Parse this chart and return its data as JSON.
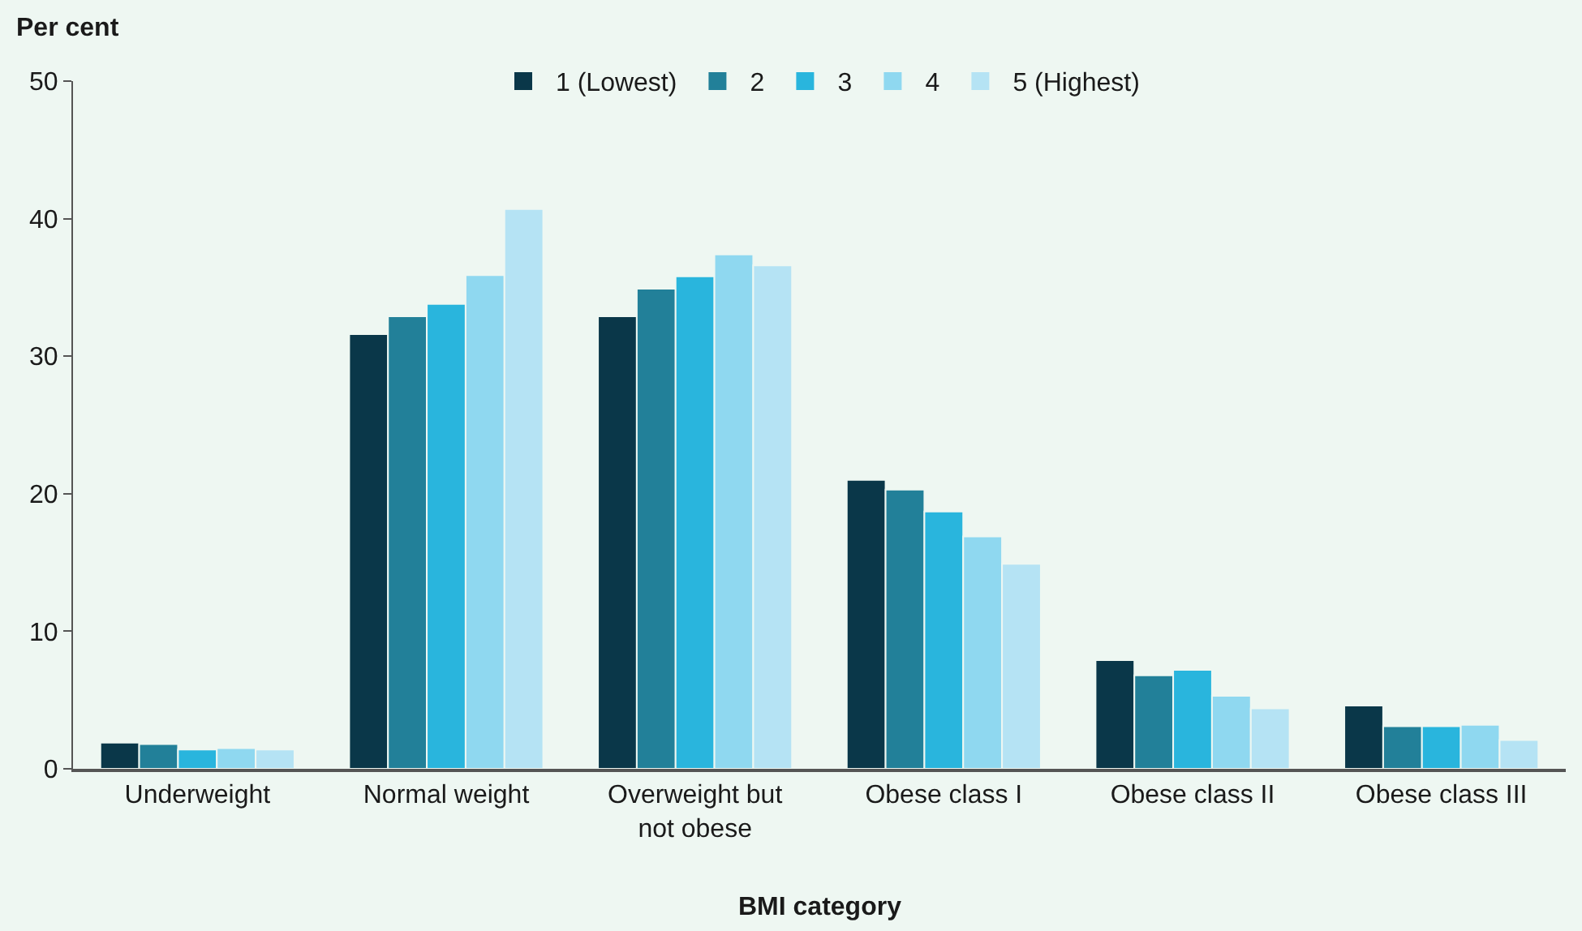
{
  "chart_data": {
    "type": "bar",
    "ylabel": "Per cent",
    "xlabel": "BMI category",
    "categories": [
      "Underweight",
      "Normal weight",
      "Overweight but not obese",
      "Obese class I",
      "Obese class II",
      "Obese class III"
    ],
    "series": [
      {
        "name": "1 (Lowest)",
        "color": "#0a3749",
        "values": [
          1.9,
          31.6,
          32.9,
          21.0,
          7.9,
          4.6
        ]
      },
      {
        "name": "2",
        "color": "#228099",
        "values": [
          1.8,
          32.9,
          34.9,
          20.3,
          6.8,
          3.1
        ]
      },
      {
        "name": "3",
        "color": "#29b5dd",
        "values": [
          1.4,
          33.8,
          35.8,
          18.7,
          7.2,
          3.1
        ]
      },
      {
        "name": "4",
        "color": "#8fd8f0",
        "values": [
          1.5,
          35.9,
          37.4,
          16.9,
          5.3,
          3.2
        ]
      },
      {
        "name": "5 (Highest)",
        "color": "#b5e3f4",
        "values": [
          1.4,
          40.7,
          36.6,
          14.9,
          4.4,
          2.1
        ]
      }
    ],
    "ylim": [
      0,
      50
    ],
    "yticks": [
      0,
      10,
      20,
      30,
      40,
      50
    ],
    "grid": false,
    "legend": "top"
  }
}
